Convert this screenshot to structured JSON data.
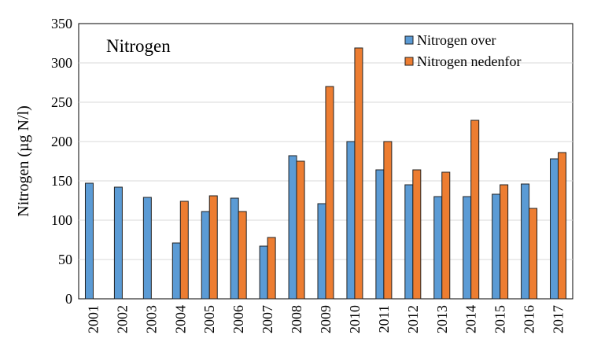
{
  "chart_data": {
    "type": "bar",
    "title": "Nitrogen",
    "y_label": "Nitrogen (µg N/l)",
    "categories": [
      "2001",
      "2002",
      "2003",
      "2004",
      "2005",
      "2006",
      "2007",
      "2008",
      "2009",
      "2010",
      "2011",
      "2012",
      "2013",
      "2014",
      "2015",
      "2016",
      "2017"
    ],
    "series": [
      {
        "name": "Nitrogen over",
        "color": "#5b9bd5",
        "values": [
          147,
          142,
          129,
          71,
          111,
          128,
          67,
          182,
          121,
          200,
          164,
          145,
          130,
          130,
          133,
          146,
          178
        ]
      },
      {
        "name": "Nitrogen nedenfor",
        "color": "#ed7d31",
        "values": [
          null,
          null,
          null,
          124,
          131,
          111,
          78,
          175,
          270,
          319,
          200,
          164,
          161,
          227,
          145,
          115,
          186
        ]
      }
    ],
    "ylim": [
      0,
      350
    ],
    "yticks": [
      0,
      50,
      100,
      150,
      200,
      250,
      300,
      350
    ],
    "grid": true
  }
}
